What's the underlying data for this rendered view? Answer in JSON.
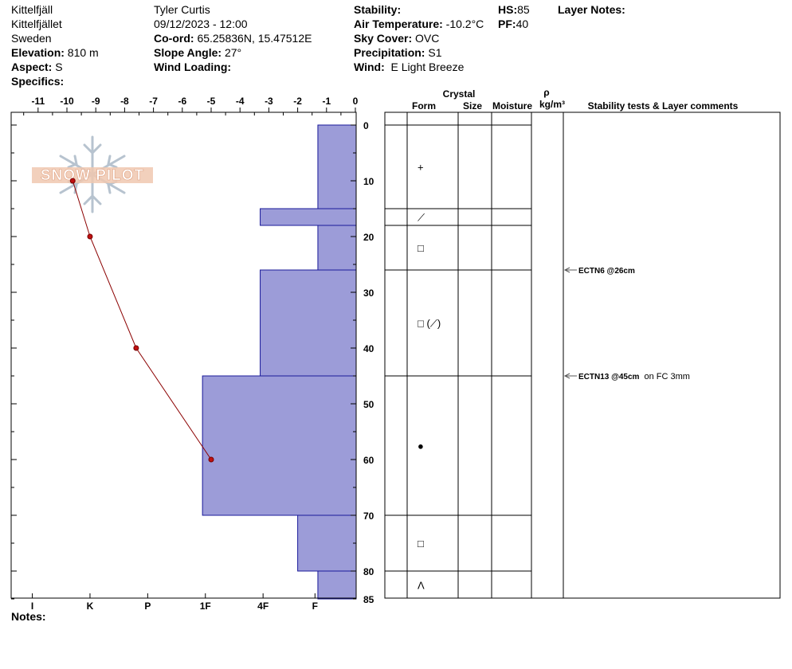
{
  "header": {
    "location": "Kittelfjäll",
    "area": "Kittelfjället",
    "country": "Sweden",
    "elevation_label": "Elevation:",
    "elevation_value": "810 m",
    "aspect_label": "Aspect:",
    "aspect_value": "S",
    "specifics_label": "Specifics:",
    "observer": "Tyler Curtis",
    "datetime": "09/12/2023 - 12:00",
    "coord_label": "Co-ord:",
    "coord_value": "65.25836N, 15.47512E",
    "slope_label": "Slope Angle:",
    "slope_value": "27°",
    "wind_loading_label": "Wind Loading:",
    "stability_label": "Stability:",
    "air_temp_label": "Air Temperature:",
    "air_temp_value": "-10.2°C",
    "sky_label": "Sky Cover:",
    "sky_value": "OVC",
    "precip_label": "Precipitation:",
    "precip_value": "S1",
    "wind_label": "Wind:",
    "wind_value": "E Light Breeze",
    "hs_label": "HS:",
    "hs_value": "85",
    "pf_label": "PF:",
    "pf_value": "40",
    "layer_notes_label": "Layer Notes:"
  },
  "notes_label": "Notes:",
  "watermark": "SNOW PILOT",
  "colors": {
    "hardness_fill": "#9c9cd8",
    "hardness_stroke": "#1a1a9a",
    "temp_line": "#8b0000",
    "temp_point": "#c01010"
  },
  "chart_data": {
    "type": "snow_profile",
    "depth_axis": {
      "range": [
        0,
        85
      ],
      "ticks": [
        0,
        10,
        20,
        30,
        40,
        50,
        60,
        70,
        80,
        85
      ]
    },
    "temperature_axis": {
      "range": [
        -12,
        0
      ],
      "ticks": [
        -11,
        -10,
        -9,
        -8,
        -7,
        -6,
        -5,
        -4,
        -3,
        -2,
        -1,
        0
      ]
    },
    "hardness_axis": {
      "ticks": [
        "I",
        "K",
        "P",
        "1F",
        "4F",
        "F"
      ],
      "positions": [
        -11.2,
        -9.2,
        -7.2,
        -5.2,
        -3.2,
        -1.4
      ]
    },
    "hardness_layers": [
      {
        "top": 0,
        "bottom": 15,
        "temp_units": -1.3
      },
      {
        "top": 15,
        "bottom": 18,
        "temp_units": -3.3
      },
      {
        "top": 18,
        "bottom": 26,
        "temp_units": -1.3
      },
      {
        "top": 26,
        "bottom": 45,
        "temp_units": -3.3
      },
      {
        "top": 45,
        "bottom": 70,
        "temp_units": -5.3
      },
      {
        "top": 70,
        "bottom": 80,
        "temp_units": -2.0
      },
      {
        "top": 80,
        "bottom": 85,
        "temp_units": -1.3
      }
    ],
    "temperature_profile": [
      {
        "depth": 10,
        "temp": -9.8
      },
      {
        "depth": 20,
        "temp": -9.2
      },
      {
        "depth": 40,
        "temp": -7.6
      },
      {
        "depth": 60,
        "temp": -5.0
      }
    ],
    "layer_boundaries": [
      15,
      18,
      26,
      45,
      70,
      80
    ],
    "crystal_forms": [
      {
        "depth": 7.5,
        "symbol": "+"
      },
      {
        "depth": 16.5,
        "symbol": "⟋"
      },
      {
        "depth": 22,
        "symbol": "□"
      },
      {
        "depth": 35.5,
        "symbol": "□ (⟋)"
      },
      {
        "depth": 57.5,
        "symbol": "●"
      },
      {
        "depth": 75,
        "symbol": "□"
      },
      {
        "depth": 82.5,
        "symbol": "Λ"
      }
    ],
    "table_headers": {
      "crystal": "Crystal",
      "form": "Form",
      "size": "Size",
      "moisture": "Moisture",
      "rho": "ρ",
      "density_unit": "kg/m³",
      "comments": "Stability tests & Layer comments"
    },
    "stability_tests": [
      {
        "depth": 26,
        "label": "ECTN6 @26cm",
        "comment": ""
      },
      {
        "depth": 45,
        "label": "ECTN13 @45cm",
        "comment": "on FC 3mm"
      }
    ]
  }
}
